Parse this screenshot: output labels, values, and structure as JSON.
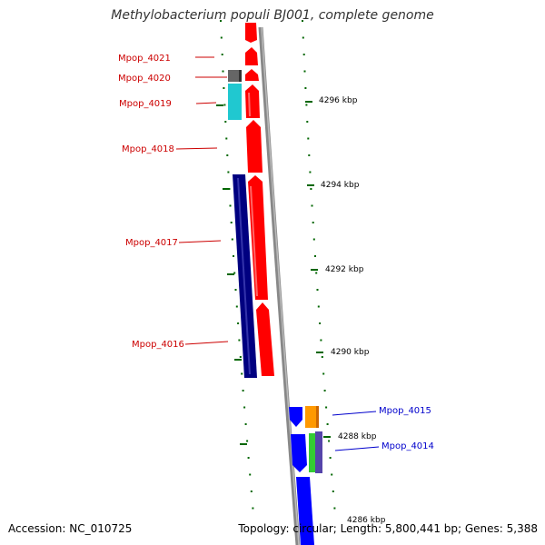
{
  "title": "Methylobacterium populi BJ001, complete genome",
  "footer": {
    "accession": "Accession: NC_010725",
    "summary": "Topology: circular; Length: 5,800,441 bp; Genes: 5,388"
  },
  "ticks": [
    {
      "label": "4296 kbp"
    },
    {
      "label": "4294 kbp"
    },
    {
      "label": "4292 kbp"
    },
    {
      "label": "4290 kbp"
    },
    {
      "label": "4288 kbp"
    },
    {
      "label": "4286 kbp"
    }
  ],
  "genes": [
    {
      "id": "Mpop_4021",
      "color": "#ff0000",
      "strand": "reverse"
    },
    {
      "id": "Mpop_4020",
      "color": "#ff0000",
      "strand": "reverse"
    },
    {
      "id": "Mpop_4019",
      "color": "#ff0000",
      "strand": "reverse"
    },
    {
      "id": "Mpop_4018",
      "color": "#ff0000",
      "strand": "reverse"
    },
    {
      "id": "Mpop_4017",
      "color": "#ff0000",
      "strand": "reverse"
    },
    {
      "id": "Mpop_4016",
      "color": "#ff0000",
      "strand": "reverse"
    },
    {
      "id": "Mpop_4015",
      "color": "#0000ff",
      "strand": "forward"
    },
    {
      "id": "Mpop_4014",
      "color": "#0000ff",
      "strand": "forward"
    }
  ],
  "colors": {
    "reverse_label": "#cc0000",
    "forward_label": "#0000cc",
    "backbone": "#888888",
    "tick": "#006600",
    "navy": "#000080",
    "cyan": "#20c8d0",
    "gray": "#666666",
    "orange": "#ff9900",
    "green": "#33cc33",
    "purple": "#5544aa"
  }
}
